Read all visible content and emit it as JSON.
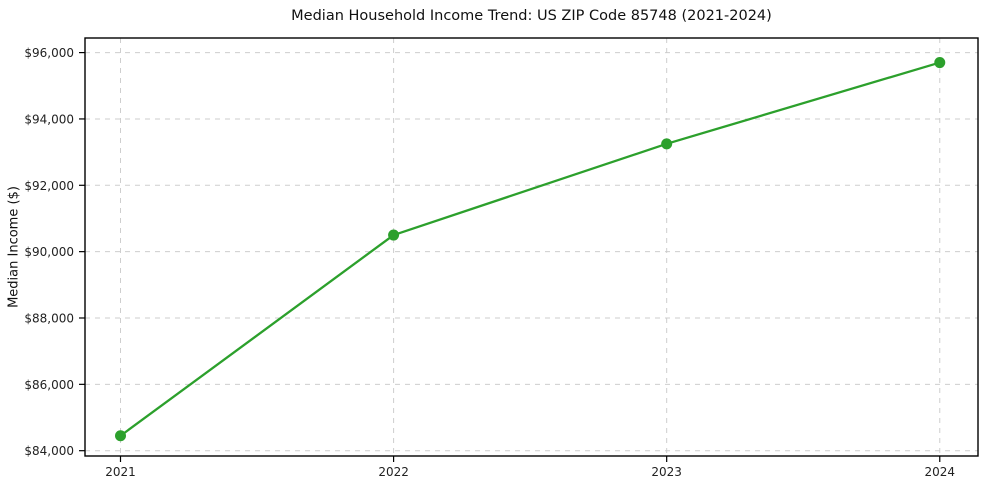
{
  "page": {
    "background": "#ffffff"
  },
  "chart_data": {
    "type": "line",
    "title": "Median Household Income Trend: US ZIP Code 85748 (2021-2024)",
    "xlabel": "",
    "ylabel": "Median Income ($)",
    "x": [
      2021,
      2022,
      2023,
      2024
    ],
    "x_tick_labels": [
      "2021",
      "2022",
      "2023",
      "2024"
    ],
    "series": [
      {
        "name": "median_household_income",
        "values": [
          84450,
          90500,
          93250,
          95700
        ],
        "color": "#2ca02c",
        "marker": "circle",
        "marker_size": 5.5,
        "line_width": 2.3
      }
    ],
    "y_ticks": [
      84000,
      86000,
      88000,
      90000,
      92000,
      94000,
      96000
    ],
    "y_tick_labels": [
      "$84,000",
      "$86,000",
      "$88,000",
      "$90,000",
      "$92,000",
      "$94,000",
      "$96,000"
    ],
    "xlim": [
      2020.87,
      2024.14
    ],
    "ylim": [
      83840,
      96440
    ],
    "grid": {
      "show": true,
      "style": "dashed",
      "color": "#c9c9c9"
    },
    "legend": "none",
    "plot_bg": "#ffffff",
    "axis_color": "#000000",
    "tick_label_color": "#222222"
  }
}
